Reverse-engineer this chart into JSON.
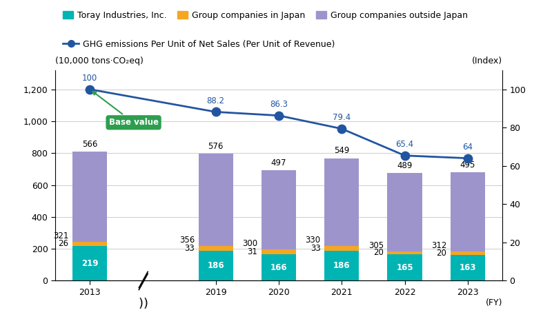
{
  "years": [
    2013,
    2019,
    2020,
    2021,
    2022,
    2023
  ],
  "x_positions": [
    0,
    2,
    3,
    4,
    5,
    6
  ],
  "toray_industries": [
    219,
    186,
    166,
    186,
    165,
    163
  ],
  "group_japan": [
    26,
    33,
    31,
    33,
    20,
    20
  ],
  "group_outside_japan": [
    566,
    576,
    497,
    549,
    489,
    495
  ],
  "cumulative_labels": [
    321,
    356,
    300,
    330,
    305,
    312
  ],
  "ghg_index": [
    100,
    88.2,
    86.3,
    79.4,
    65.4,
    64.0
  ],
  "bar_width": 0.55,
  "toray_color": "#00b4b4",
  "japan_color": "#f5a623",
  "outside_color": "#9e94cc",
  "line_color": "#2255a0",
  "base_value_box_color": "#2e9e4e",
  "base_value_text": "Base value",
  "ylabel_left": "(10,000 tons·CO₂eq)",
  "ylabel_right": "(Index)",
  "xlabel": "(FY)",
  "ylim_left": [
    0,
    1320
  ],
  "ylim_right": [
    0,
    110
  ],
  "yticks_left": [
    0,
    200,
    400,
    600,
    800,
    1000,
    1200
  ],
  "yticks_right": [
    0,
    20,
    40,
    60,
    80,
    100
  ],
  "legend_labels": [
    "Toray Industries, Inc.",
    "Group companies in Japan",
    "Group companies outside Japan",
    "GHG emissions Per Unit of Net Sales (Per Unit of Revenue)"
  ],
  "bar_annotations_toray": [
    219,
    186,
    166,
    186,
    165,
    163
  ],
  "bar_annotations_japan": [
    26,
    33,
    31,
    33,
    20,
    20
  ],
  "bar_annotations_outside": [
    566,
    576,
    497,
    549,
    489,
    495
  ],
  "ghg_annotations": [
    100,
    88.2,
    86.3,
    79.4,
    65.4,
    64.0
  ],
  "background_color": "#ffffff",
  "grid_color": "#cccccc"
}
